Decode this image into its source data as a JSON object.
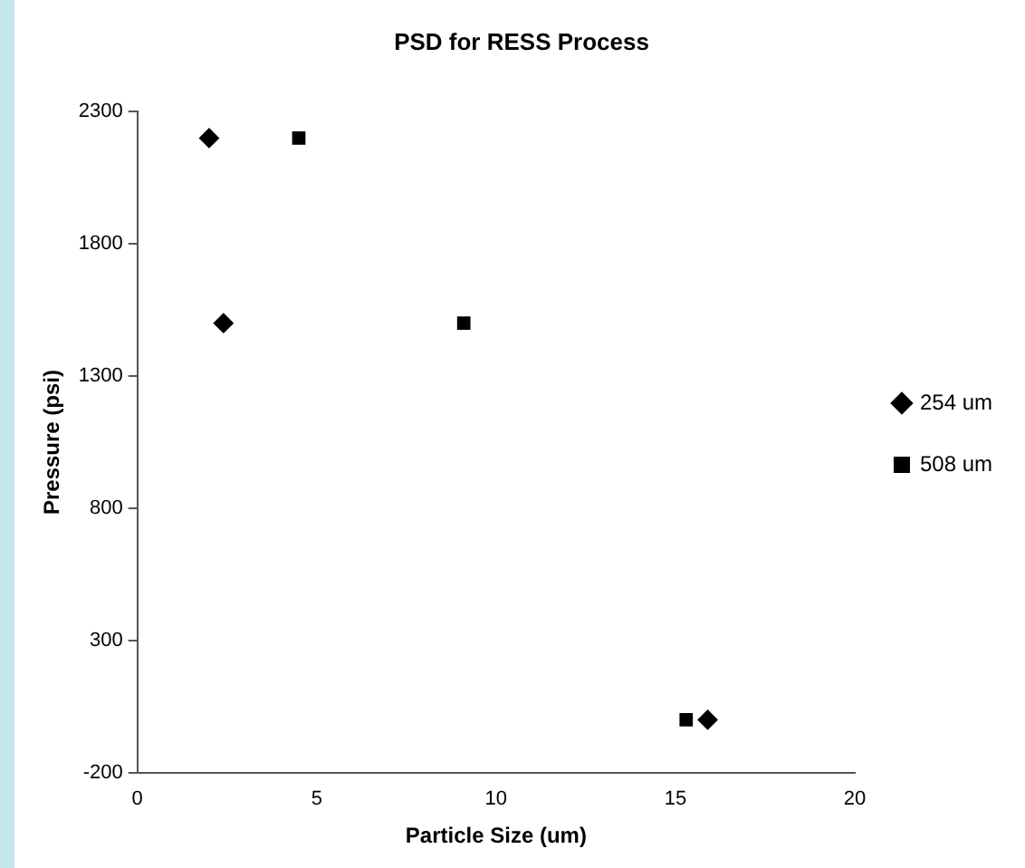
{
  "chart_data": {
    "type": "scatter",
    "title": "PSD for RESS Process",
    "xlabel": "Particle Size (um)",
    "ylabel": "Pressure (psi)",
    "series": [
      {
        "name": "254 um",
        "color": "#000000",
        "marker": "diamond",
        "x": [
          2,
          2.4,
          15.9
        ],
        "values": [
          2200,
          1500,
          0
        ]
      },
      {
        "name": "508 um",
        "color": "#000000",
        "marker": "square",
        "x": [
          4.5,
          9.1,
          15.3
        ],
        "values": [
          2200,
          1500,
          0
        ]
      }
    ],
    "xlim": [
      0,
      20
    ],
    "xticks": [
      0,
      5,
      10,
      15,
      20
    ],
    "ylim": [
      -200,
      2300
    ],
    "yticks": [
      -200,
      300,
      800,
      1300,
      1800,
      2300
    ],
    "grid": false,
    "legend": "right"
  }
}
